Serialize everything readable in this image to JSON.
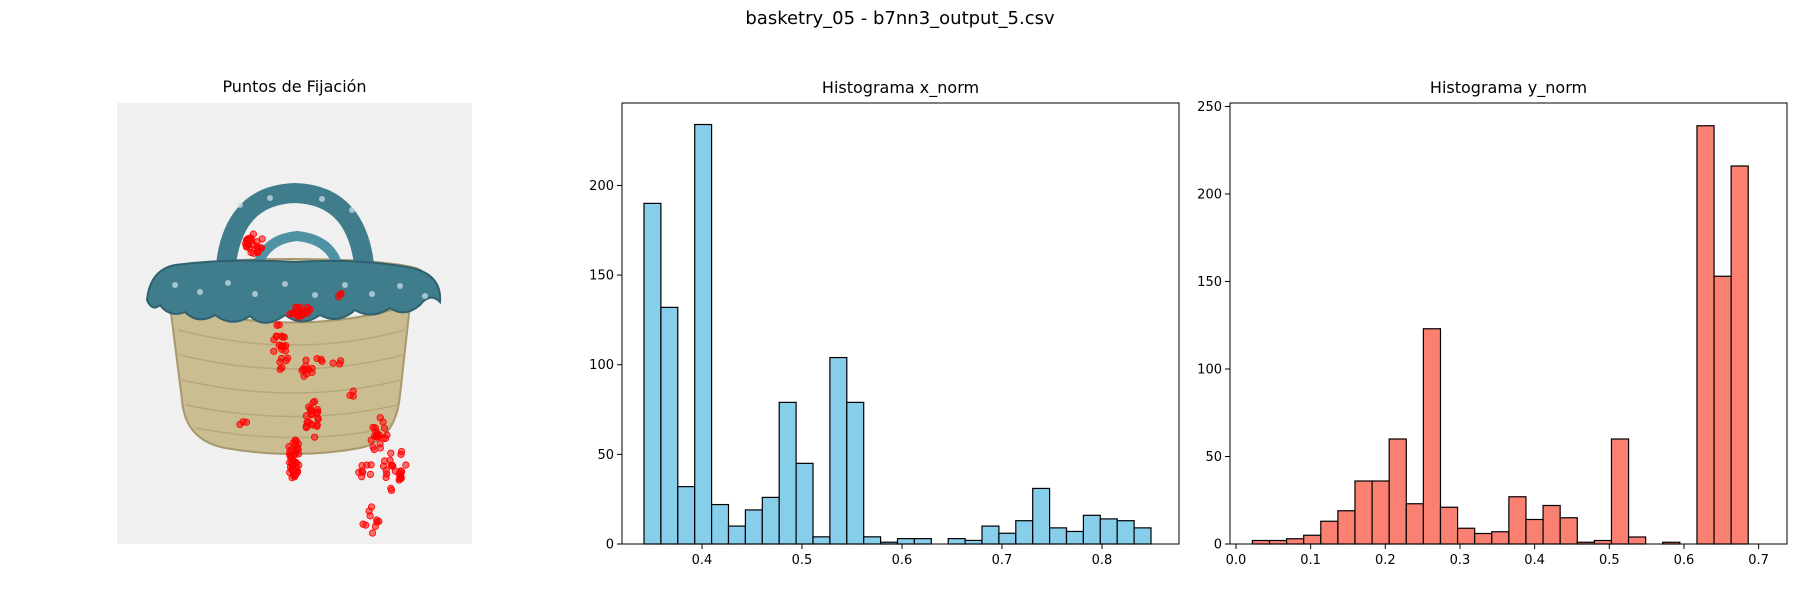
{
  "figure_title": "basketry_05 - b7nn3_output_5.csv",
  "fixation_panel": {
    "title": "Puntos de Fijación",
    "background_color": "#f0f0f0",
    "point_color": "#ff0000",
    "image_content": "basket-photo"
  },
  "chart_data": [
    {
      "type": "bar",
      "title": "Histograma x_norm",
      "xlabel": "",
      "ylabel": "",
      "color": "#87ceeb",
      "edge_color": "#000000",
      "bin_start": 0.342,
      "bin_width": 0.0169,
      "values": [
        190,
        132,
        32,
        234,
        22,
        10,
        19,
        26,
        79,
        45,
        4,
        104,
        79,
        4,
        1,
        3,
        3,
        0,
        3,
        2,
        10,
        6,
        13,
        31,
        9,
        7,
        16,
        14,
        13,
        9
      ],
      "xlim": [
        0.32,
        0.877
      ],
      "ylim": [
        0,
        246
      ],
      "xticks": [
        "0.4",
        "0.5",
        "0.6",
        "0.7",
        "0.8"
      ],
      "xtick_values": [
        0.4,
        0.5,
        0.6,
        0.7,
        0.8
      ],
      "yticks": [
        "0",
        "50",
        "100",
        "150",
        "200"
      ],
      "ytick_values": [
        0,
        50,
        100,
        150,
        200
      ]
    },
    {
      "type": "bar",
      "title": "Histograma y_norm",
      "xlabel": "",
      "ylabel": "",
      "color": "#fa8072",
      "edge_color": "#000000",
      "bin_start": 0.022,
      "bin_width": 0.0229,
      "values": [
        2,
        2,
        3,
        5,
        13,
        19,
        36,
        36,
        60,
        23,
        123,
        21,
        9,
        6,
        7,
        27,
        14,
        22,
        15,
        1,
        2,
        60,
        4,
        0,
        1,
        0,
        239,
        153,
        216
      ],
      "xlim": [
        -0.008,
        0.738
      ],
      "ylim": [
        0,
        252
      ],
      "xticks": [
        "0.0",
        "0.1",
        "0.2",
        "0.3",
        "0.4",
        "0.5",
        "0.6",
        "0.7"
      ],
      "xtick_values": [
        0.0,
        0.1,
        0.2,
        0.3,
        0.4,
        0.5,
        0.6,
        0.7
      ],
      "yticks": [
        "0",
        "50",
        "100",
        "150",
        "200",
        "250"
      ],
      "ytick_values": [
        0,
        50,
        100,
        150,
        200,
        250
      ]
    }
  ]
}
